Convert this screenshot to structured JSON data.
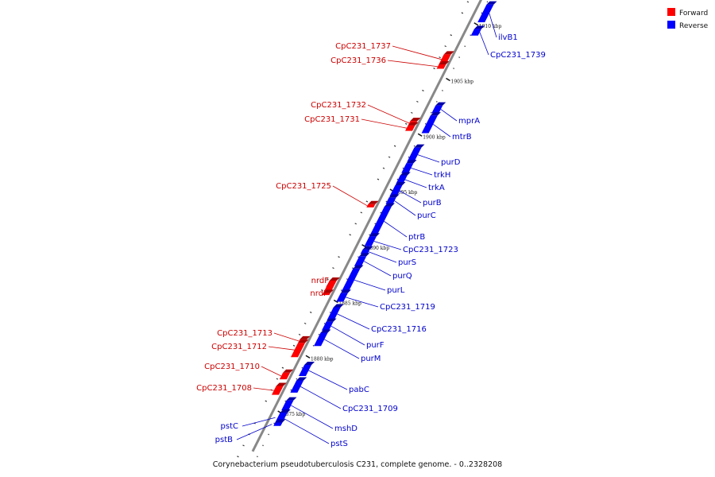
{
  "caption": "Corynebacterium pseudotuberculosis C231, complete genome. - 0..2328208",
  "legend": [
    {
      "label": "Forward",
      "color": "#ff0000"
    },
    {
      "label": "Reverse",
      "color": "#0000ff"
    }
  ],
  "colors": {
    "forward": "#ff0000",
    "forward_dark": "#aa0000",
    "reverse": "#0000ff",
    "reverse_dark": "#0000aa",
    "axis": "#888888",
    "forward_label": "#cc0000",
    "reverse_label": "#0000cc"
  },
  "kbp_ticks": [
    {
      "kbp": 1910,
      "label": "1910 kbp"
    },
    {
      "kbp": 1905,
      "label": "1905 kbp"
    },
    {
      "kbp": 1900,
      "label": "1900 kbp"
    },
    {
      "kbp": 1895,
      "label": "1895 kbp"
    },
    {
      "kbp": 1890,
      "label": "1890 kbp"
    },
    {
      "kbp": 1885,
      "label": "1885 kbp"
    },
    {
      "kbp": 1880,
      "label": "1880 kbp"
    },
    {
      "kbp": 1875,
      "label": "1875 kbp"
    }
  ],
  "forward_genes": [
    {
      "name": "CpC231_1737",
      "start_kbp": 1906.4,
      "end_kbp": 1907.3
    },
    {
      "name": "CpC231_1736",
      "start_kbp": 1906.0,
      "end_kbp": 1906.4
    },
    {
      "name": "CpC231_1732",
      "start_kbp": 1900.9,
      "end_kbp": 1901.3
    },
    {
      "name": "CpC231_1731",
      "start_kbp": 1900.4,
      "end_kbp": 1900.9
    },
    {
      "name": "CpC231_1725",
      "start_kbp": 1893.5,
      "end_kbp": 1893.8
    },
    {
      "name": "nrdF",
      "start_kbp": 1885.8,
      "end_kbp": 1886.9
    },
    {
      "name": "nrdI",
      "start_kbp": 1885.6,
      "end_kbp": 1885.8
    },
    {
      "name": "CpC231_1713",
      "start_kbp": 1881.3,
      "end_kbp": 1881.6
    },
    {
      "name": "CpC231_1712",
      "start_kbp": 1880.0,
      "end_kbp": 1881.3
    },
    {
      "name": "CpC231_1710",
      "start_kbp": 1878.0,
      "end_kbp": 1878.6
    },
    {
      "name": "CpC231_1708",
      "start_kbp": 1876.6,
      "end_kbp": 1877.4
    }
  ],
  "reverse_genes": [
    {
      "name": "ilvB1",
      "start_kbp": 1910.2,
      "end_kbp": 1911.8
    },
    {
      "name": "CpC231_1739",
      "start_kbp": 1909.0,
      "end_kbp": 1909.6
    },
    {
      "name": "mprA",
      "start_kbp": 1902.0,
      "end_kbp": 1902.7
    },
    {
      "name": "mtrB",
      "start_kbp": 1900.2,
      "end_kbp": 1901.8
    },
    {
      "name": "purD",
      "start_kbp": 1897.6,
      "end_kbp": 1898.9
    },
    {
      "name": "trkH",
      "start_kbp": 1896.6,
      "end_kbp": 1897.5
    },
    {
      "name": "trkA",
      "start_kbp": 1895.6,
      "end_kbp": 1896.4
    },
    {
      "name": "purB",
      "start_kbp": 1894.5,
      "end_kbp": 1895.5
    },
    {
      "name": "purC",
      "start_kbp": 1893.8,
      "end_kbp": 1894.4
    },
    {
      "name": "ptrB",
      "start_kbp": 1890.9,
      "end_kbp": 1893.6
    },
    {
      "name": "CpC231_1723",
      "start_kbp": 1890.0,
      "end_kbp": 1890.9
    },
    {
      "name": "purS",
      "start_kbp": 1889.3,
      "end_kbp": 1889.7
    },
    {
      "name": "purQ",
      "start_kbp": 1888.2,
      "end_kbp": 1889.1
    },
    {
      "name": "purL",
      "start_kbp": 1885.9,
      "end_kbp": 1888.0
    },
    {
      "name": "CpC231_1719",
      "start_kbp": 1885.0,
      "end_kbp": 1885.8
    },
    {
      "name": "CpC231_1716",
      "start_kbp": 1883.3,
      "end_kbp": 1884.5
    },
    {
      "name": "purF",
      "start_kbp": 1882.4,
      "end_kbp": 1883.2
    },
    {
      "name": "purM",
      "start_kbp": 1881.0,
      "end_kbp": 1882.2
    },
    {
      "name": "pabC",
      "start_kbp": 1878.3,
      "end_kbp": 1879.3
    },
    {
      "name": "CpC231_1709",
      "start_kbp": 1876.8,
      "end_kbp": 1877.9
    },
    {
      "name": "mshD",
      "start_kbp": 1875.2,
      "end_kbp": 1876.1
    },
    {
      "name": "pstS",
      "start_kbp": 1873.9,
      "end_kbp": 1875.0
    },
    {
      "name": "pstC",
      "start_kbp": 1874.1,
      "end_kbp": 1875.0
    },
    {
      "name": "pstB",
      "start_kbp": 1873.8,
      "end_kbp": 1874.1
    }
  ]
}
